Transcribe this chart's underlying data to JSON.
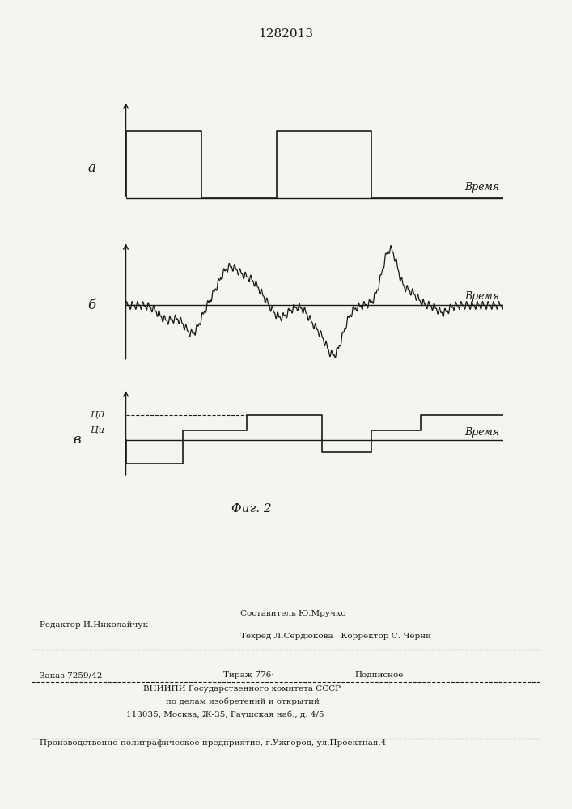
{
  "title": "1282013",
  "fig_caption": "Фиг. 2",
  "panel_a_label": "а",
  "panel_b_label": "б",
  "panel_v_label": "в",
  "time_label": "Время",
  "u2_label": "Цд",
  "u1_label": "Ци",
  "footer_line1_left": "Редактор И.Николайчук",
  "footer_line1_center": "Составитель Ю.Мручко",
  "footer_line2_center": "Техред Л.Сердюкова   Корректор С. Черни",
  "footer_order": "Заказ 7259/42",
  "footer_tirazh": "Тираж 776·",
  "footer_podpisnoe": "Подписное",
  "footer_vniip": "ВНИИПИ Государственного комитета СССР",
  "footer_delo": "по делам изобретений и открытий",
  "footer_address": "113035, Москва, Ж-35, Раушская наб., д. 4/5",
  "footer_proizv": "Производственно-полиграфическое предприятие, г.Ужгород, ул.Проектная,4",
  "bg_color": "#f5f5f0",
  "line_color": "#1a1a1a"
}
